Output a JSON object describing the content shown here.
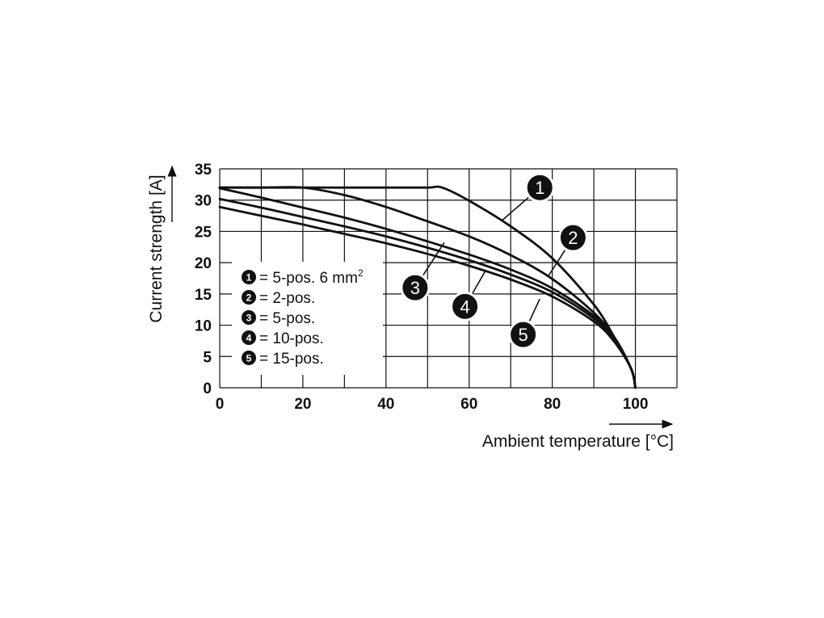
{
  "chart_data": {
    "type": "line",
    "xlabel": "Ambient temperature [°C]",
    "ylabel": "Current strength [A]",
    "xlim": [
      0,
      110
    ],
    "ylim": [
      0,
      35
    ],
    "x_ticks": [
      "0",
      "20",
      "40",
      "60",
      "80",
      "100"
    ],
    "y_ticks": [
      "0",
      "5",
      "10",
      "15",
      "20",
      "25",
      "30",
      "35"
    ],
    "grid": true,
    "legend_position": "left",
    "series": [
      {
        "id": "1",
        "name": "= 5-pos. 6 mm",
        "superscript": "2",
        "x": [
          0,
          10,
          20,
          30,
          40,
          50,
          53.5,
          60,
          70,
          80,
          90,
          95,
          99,
          100
        ],
        "y": [
          32,
          32,
          32,
          32,
          32,
          32,
          32,
          29.9,
          25.8,
          20.7,
          13.3,
          8.0,
          3.0,
          0
        ]
      },
      {
        "id": "2",
        "name": "= 2-pos.",
        "x": [
          0,
          10,
          20,
          30,
          40,
          50,
          60,
          70,
          80,
          90,
          95,
          99,
          100
        ],
        "y": [
          32,
          32,
          32,
          30.8,
          28.9,
          26.6,
          24.2,
          21.2,
          17.4,
          12.0,
          8.0,
          3.0,
          0
        ]
      },
      {
        "id": "3",
        "name": "= 5-pos.",
        "x": [
          0,
          10,
          20,
          30,
          40,
          50,
          60,
          70,
          80,
          90,
          95,
          99,
          100
        ],
        "y": [
          30.2,
          28.8,
          27.3,
          25.8,
          24.2,
          22.4,
          20.4,
          18.1,
          15.3,
          11.1,
          7.7,
          3.0,
          0
        ]
      },
      {
        "id": "4",
        "name": "= 10-pos.",
        "x": [
          0,
          10,
          20,
          30,
          40,
          50,
          60,
          70,
          80,
          90,
          95,
          99,
          100
        ],
        "y": [
          31.9,
          30.4,
          28.8,
          27.2,
          25.4,
          23.4,
          21.3,
          18.9,
          15.9,
          11.5,
          8.0,
          3.0,
          0
        ]
      },
      {
        "id": "5",
        "name": "= 15-pos.",
        "x": [
          0,
          10,
          20,
          30,
          40,
          50,
          60,
          70,
          80,
          90,
          95,
          99,
          100
        ],
        "y": [
          28.9,
          27.5,
          26.1,
          24.6,
          23.1,
          21.4,
          19.5,
          17.3,
          14.6,
          10.6,
          7.3,
          3.0,
          0
        ]
      }
    ],
    "callouts": [
      {
        "id": "1",
        "label": "1",
        "anchor": [
          68,
          26.8
        ],
        "badge": [
          77,
          32
        ]
      },
      {
        "id": "2",
        "label": "2",
        "anchor": [
          79,
          17.8
        ],
        "badge": [
          85,
          24
        ]
      },
      {
        "id": "3",
        "label": "3",
        "anchor": [
          54,
          23.2
        ],
        "badge": [
          47,
          16
        ]
      },
      {
        "id": "4",
        "label": "4",
        "anchor": [
          64,
          18.8
        ],
        "badge": [
          59,
          13
        ]
      },
      {
        "id": "5",
        "label": "5",
        "anchor": [
          77,
          14.2
        ],
        "badge": [
          73,
          8.5
        ]
      }
    ]
  }
}
